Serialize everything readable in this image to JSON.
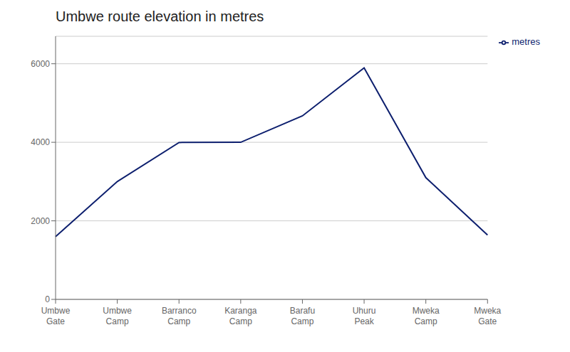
{
  "chart_data": {
    "type": "line",
    "title": "Umbwe route elevation in metres",
    "categories": [
      "Umbwe\nGate",
      "Umbwe\nCamp",
      "Barranco\nCamp",
      "Karanga\nCamp",
      "Barafu\nCamp",
      "Uhuru\nPeak",
      "Mweka\nCamp",
      "Mweka\nGate"
    ],
    "series": [
      {
        "name": "metres",
        "color": "#0d1f6e",
        "values": [
          1600,
          3000,
          3995,
          4000,
          4673,
          5895,
          3100,
          1640
        ]
      }
    ],
    "ylim": [
      0,
      6700
    ],
    "yticks": [
      0,
      2000,
      4000,
      6000
    ],
    "grid": true,
    "legend": "right"
  }
}
